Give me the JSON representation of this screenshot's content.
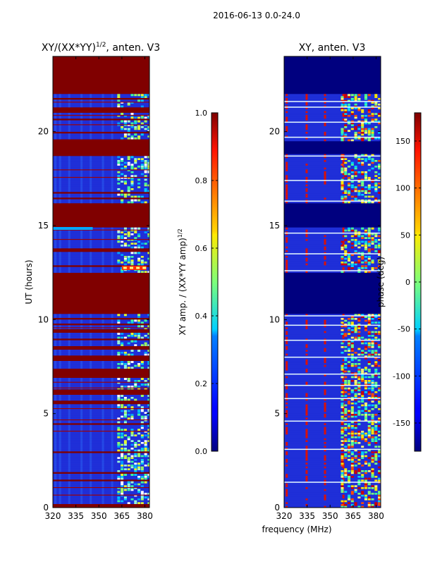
{
  "suptitle": "2016-06-13 0.0-24.0",
  "chart_data": [
    {
      "type": "heatmap",
      "title": "XY/(XX*YY)^1/2, anten. V3",
      "title_main": "XY/(XX*YY)",
      "title_exp": "1/2",
      "title_tail": ", anten. V3",
      "xlabel": "",
      "ylabel": "UT (hours)",
      "xlim": [
        320,
        383
      ],
      "ylim": [
        0,
        24
      ],
      "xticks": [
        320,
        335,
        350,
        365,
        380
      ],
      "yticks": [
        0,
        5,
        10,
        15,
        20
      ],
      "background_color": "#800000",
      "fill_color": "#1f2fd8",
      "red_bands": [
        [
          0,
          0.2
        ],
        [
          1.4,
          1.5
        ],
        [
          1.8,
          1.9
        ],
        [
          2.9,
          3.0
        ],
        [
          4.4,
          4.5
        ],
        [
          5.5,
          5.7
        ],
        [
          6.0,
          6.3
        ],
        [
          6.9,
          7.4
        ],
        [
          7.8,
          8.1
        ],
        [
          8.4,
          8.6
        ],
        [
          8.9,
          9.0
        ],
        [
          9.3,
          9.5
        ],
        [
          9.7,
          9.8
        ],
        [
          10.0,
          10.1
        ],
        [
          10.3,
          12.5
        ],
        [
          12.8,
          12.9
        ],
        [
          13.6,
          13.8
        ],
        [
          14.9,
          16.2
        ],
        [
          16.4,
          16.5
        ],
        [
          16.7,
          16.8
        ],
        [
          18.7,
          19.6
        ],
        [
          19.9,
          20.0
        ],
        [
          20.6,
          20.7
        ],
        [
          21.0,
          21.3
        ],
        [
          21.7,
          21.8
        ],
        [
          22.0,
          24.0
        ]
      ],
      "hot_events": [
        {
          "t": 12.75,
          "f": [
            365,
            381
          ],
          "color": "#ff2a00"
        }
      ],
      "cyan_event": {
        "t": 14.85,
        "f": [
          320,
          346
        ]
      }
    },
    {
      "type": "heatmap",
      "title": "XY, anten. V3",
      "xlabel": "frequency (MHz)",
      "ylabel": "",
      "xlim": [
        320,
        383
      ],
      "ylim": [
        0,
        24
      ],
      "xticks": [
        320,
        335,
        350,
        365,
        380
      ],
      "yticks": [
        0,
        5,
        10,
        15,
        20
      ],
      "background_color": "#00007f",
      "fill_color": "#1f2fd8",
      "dark_bands": [
        [
          10.3,
          12.5
        ],
        [
          14.9,
          16.2
        ],
        [
          18.8,
          19.5
        ],
        [
          22.0,
          24.0
        ]
      ],
      "white_lines": [
        1.35,
        3.1,
        4.6,
        5.8,
        6.5,
        7.1,
        8.0,
        8.9,
        9.7,
        10.2,
        12.6,
        13.5,
        14.6,
        16.3,
        17.4,
        18.7,
        19.7,
        20.5,
        21.3,
        21.6
      ]
    }
  ],
  "colorbars": [
    {
      "label": "XY amp. / (XX*YY amp)^1/2",
      "label_main": "XY amp. / (XX*YY amp)",
      "label_exp": "1/2",
      "range": [
        0.0,
        1.0
      ],
      "ticks": [
        "0.0",
        "0.2",
        "0.4",
        "0.6",
        "0.8",
        "1.0"
      ]
    },
    {
      "label": "phase (deg)",
      "range": [
        -180,
        180
      ],
      "ticks": [
        "-150",
        "-100",
        "-50",
        "0",
        "50",
        "100",
        "150"
      ]
    }
  ]
}
